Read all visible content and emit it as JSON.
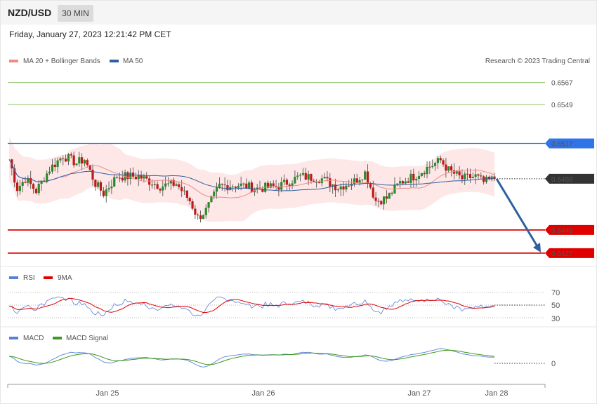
{
  "header": {
    "symbol": "NZD/USD",
    "timeframe": "30 MIN",
    "datetime": "Friday, January 27, 2023 12:21:42 PM CET"
  },
  "legends": {
    "price": [
      {
        "label": "MA 20 + Bollinger Bands",
        "color": "#f08a8a"
      },
      {
        "label": "MA 50",
        "color": "#2e5f9e"
      }
    ],
    "rsi": [
      {
        "label": "RSI",
        "color": "#5b7fd6"
      },
      {
        "label": "9MA",
        "color": "#e00000"
      }
    ],
    "macd": [
      {
        "label": "MACD",
        "color": "#5b7fd6"
      },
      {
        "label": "MACD Signal",
        "color": "#3c9a1c"
      }
    ]
  },
  "copyright": "Research © 2023 Trading Central",
  "chart_data": {
    "type": "candlestick",
    "price_axis": {
      "ylim": [
        0.6416,
        0.658
      ]
    },
    "x_labels": [
      "Jan 25",
      "Jan 26",
      "Jan 27",
      "Jan 28"
    ],
    "levels": [
      {
        "value": "0.6567",
        "role": "target",
        "color": "#6aa832"
      },
      {
        "value": "0.6549",
        "role": "target",
        "color": "#6aa832"
      },
      {
        "value": "0.6517",
        "role": "pivot",
        "color": "#2f74e8"
      },
      {
        "value": "0.6488",
        "role": "last",
        "color": "#333333"
      },
      {
        "value": "0.6446",
        "role": "support",
        "color": "#e00000"
      },
      {
        "value": "0.6427",
        "role": "support",
        "color": "#e00000"
      }
    ],
    "forecast_arrow": {
      "from": 0.6488,
      "to": 0.6427,
      "color": "#2e5f9e"
    },
    "price_path": [
      {
        "t": 0,
        "y": 0.6504
      },
      {
        "t": 3,
        "y": 0.648
      },
      {
        "t": 6,
        "y": 0.6488
      },
      {
        "t": 10,
        "y": 0.6478
      },
      {
        "t": 15,
        "y": 0.6496
      },
      {
        "t": 20,
        "y": 0.6507
      },
      {
        "t": 25,
        "y": 0.6501
      },
      {
        "t": 28,
        "y": 0.6504
      },
      {
        "t": 32,
        "y": 0.6484
      },
      {
        "t": 35,
        "y": 0.6476
      },
      {
        "t": 40,
        "y": 0.649
      },
      {
        "t": 48,
        "y": 0.649
      },
      {
        "t": 56,
        "y": 0.6482
      },
      {
        "t": 62,
        "y": 0.6484
      },
      {
        "t": 67,
        "y": 0.647
      },
      {
        "t": 70,
        "y": 0.6456
      },
      {
        "t": 73,
        "y": 0.6462
      },
      {
        "t": 78,
        "y": 0.6482
      },
      {
        "t": 85,
        "y": 0.6483
      },
      {
        "t": 92,
        "y": 0.648
      },
      {
        "t": 100,
        "y": 0.6482
      },
      {
        "t": 108,
        "y": 0.649
      },
      {
        "t": 116,
        "y": 0.6488
      },
      {
        "t": 122,
        "y": 0.6481
      },
      {
        "t": 128,
        "y": 0.6486
      },
      {
        "t": 132,
        "y": 0.6493
      },
      {
        "t": 136,
        "y": 0.647
      },
      {
        "t": 140,
        "y": 0.6472
      },
      {
        "t": 145,
        "y": 0.6485
      },
      {
        "t": 150,
        "y": 0.649
      },
      {
        "t": 155,
        "y": 0.6497
      },
      {
        "t": 160,
        "y": 0.6503
      },
      {
        "t": 163,
        "y": 0.6495
      },
      {
        "t": 168,
        "y": 0.6488
      },
      {
        "t": 173,
        "y": 0.649
      },
      {
        "t": 176,
        "y": 0.6485
      },
      {
        "t": 180,
        "y": 0.6488
      }
    ],
    "rsi": {
      "levels": [
        "70",
        "50",
        "30"
      ]
    },
    "macd": {
      "zero_label": "0"
    }
  }
}
